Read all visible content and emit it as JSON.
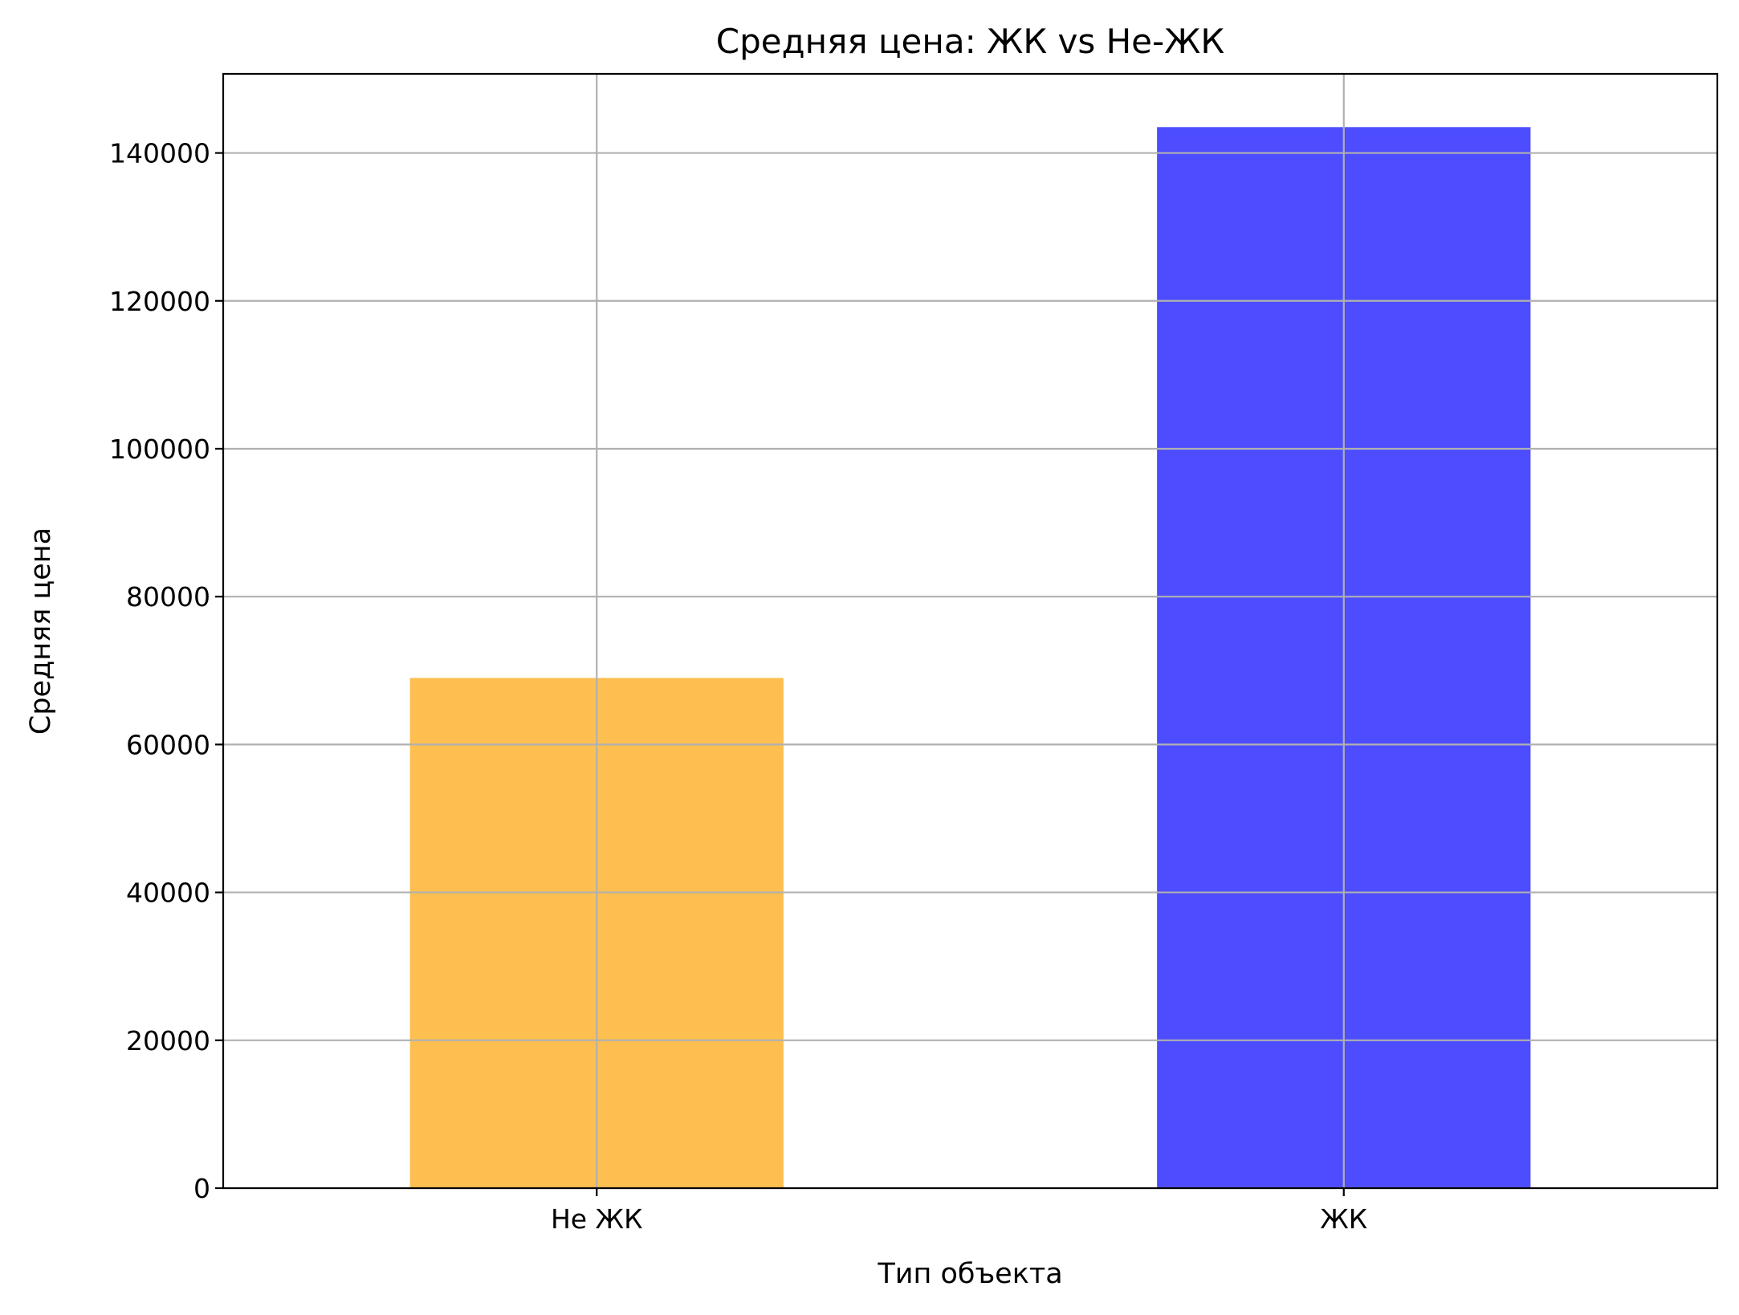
{
  "chart_data": {
    "type": "bar",
    "title": "Средняя цена: ЖК vs Не-ЖК",
    "xlabel": "Тип объекта",
    "ylabel": "Средняя цена",
    "categories": [
      "Не ЖК",
      "ЖК"
    ],
    "values": [
      69000,
      143500
    ],
    "colors": [
      "#fdbf4f",
      "#4d4dff"
    ],
    "ylim": [
      0,
      150700
    ],
    "yticks": [
      0,
      20000,
      40000,
      60000,
      80000,
      100000,
      120000,
      140000
    ],
    "ytick_labels": [
      "0",
      "20000",
      "40000",
      "60000",
      "80000",
      "100000",
      "120000",
      "140000"
    ],
    "grid": true,
    "legend": "none"
  }
}
